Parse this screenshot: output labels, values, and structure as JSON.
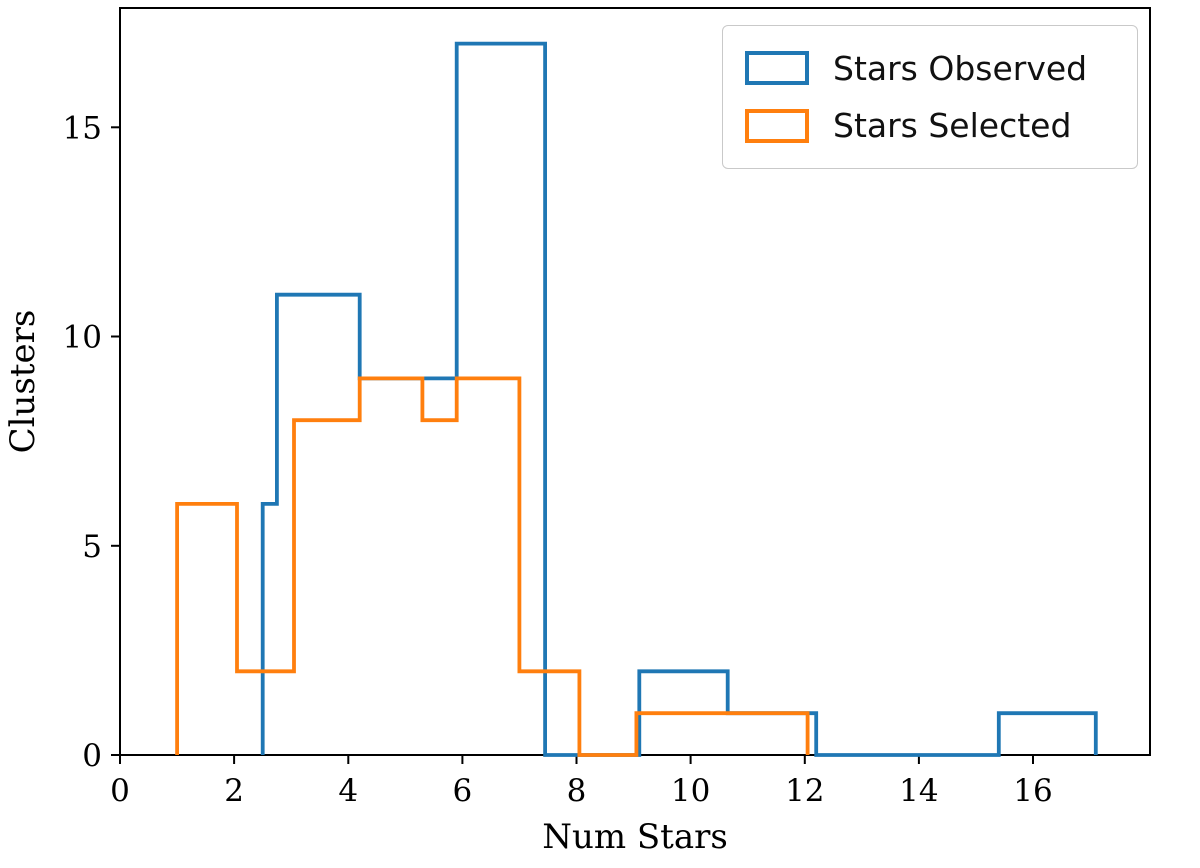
{
  "figure": {
    "background": "#ffffff",
    "spine_color": "#000000",
    "tick_color": "#000000"
  },
  "chart_data": {
    "type": "histogram-step",
    "title": "",
    "xlabel": "Num Stars",
    "ylabel": "Clusters",
    "xlim": [
      0,
      18.05
    ],
    "ylim": [
      0,
      17.85
    ],
    "xticks": [
      0,
      2,
      4,
      6,
      8,
      10,
      12,
      14,
      16
    ],
    "yticks": [
      0,
      5,
      10,
      15
    ],
    "grid": false,
    "legend": {
      "position": "upper right",
      "entries": [
        "Stars Observed",
        "Stars Selected"
      ]
    },
    "series": [
      {
        "name": "Stars Observed",
        "color": "#1f77b4",
        "bin_edges": [
          2.5,
          2.75,
          4.2,
          5.9,
          7.45,
          9.1,
          10.65,
          12.2,
          15.4,
          17.1
        ],
        "counts": [
          6,
          11,
          9,
          17,
          0,
          2,
          1,
          0,
          1
        ]
      },
      {
        "name": "Stars Selected",
        "color": "#ff7f0e",
        "bin_edges": [
          1.0,
          2.05,
          3.05,
          4.2,
          5.3,
          5.9,
          7.0,
          8.05,
          9.05,
          12.05
        ],
        "counts": [
          6,
          2,
          8,
          9,
          8,
          9,
          2,
          0,
          1
        ]
      }
    ]
  }
}
